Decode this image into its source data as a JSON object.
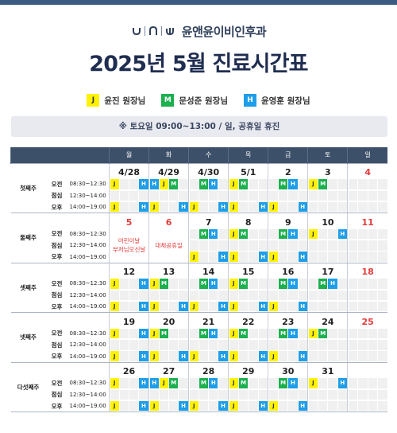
{
  "brand": {
    "name": "윤앤윤이비인후과",
    "logo_mark": "y-n-y-logo"
  },
  "title": "2025년 5월 진료시간표",
  "legend": [
    {
      "code": "J",
      "label": "윤진 원장님",
      "color": "#fff200"
    },
    {
      "code": "M",
      "label": "문성준 원장님",
      "color": "#1cb04f"
    },
    {
      "code": "H",
      "label": "윤영훈 원장님",
      "color": "#1e9ee8"
    }
  ],
  "notice": "※ 토요일 09:00~13:00 / 일, 공휴일 휴진",
  "days": [
    "월",
    "화",
    "수",
    "목",
    "금",
    "토",
    "일"
  ],
  "periods": [
    {
      "label": "오전",
      "time": "08:30~12:30"
    },
    {
      "label": "점심",
      "time": "12:30~14:00"
    },
    {
      "label": "오후",
      "time": "14:00~19:00"
    }
  ],
  "weeks": [
    {
      "label": "첫째주",
      "dates": [
        "4/28",
        "4/29",
        "4/30",
        "5/1",
        "2",
        "3",
        "4"
      ],
      "red": [
        6
      ],
      "am": [
        "J__H",
        "HJM_",
        "_MH_",
        "JM__",
        "_MH_",
        "JM__",
        "____"
      ],
      "pm": [
        "J__H",
        "J__H",
        "J__H",
        "J__H",
        "J__H",
        "____",
        "____"
      ],
      "holidays": {}
    },
    {
      "label": "둘째주",
      "dates": [
        "5",
        "6",
        "7",
        "8",
        "9",
        "10",
        "11"
      ],
      "red": [
        0,
        1,
        6
      ],
      "am": [
        "____",
        "____",
        "_MH_",
        "JM__",
        "_MH_",
        "J__H",
        "____"
      ],
      "pm": [
        "____",
        "____",
        "J__H",
        "J__H",
        "J__H",
        "____",
        "____"
      ],
      "holidays": {
        "0": "어린이날\n부처님오신날",
        "1": "대체공휴일"
      }
    },
    {
      "label": "셋째주",
      "dates": [
        "12",
        "13",
        "14",
        "15",
        "16",
        "17",
        "18"
      ],
      "red": [
        6
      ],
      "am": [
        "J__H",
        "JM__",
        "_MH_",
        "JM__",
        "_MH_",
        "_MH_",
        "____"
      ],
      "pm": [
        "J__H",
        "J__H",
        "J__H",
        "J__H",
        "J__H",
        "____",
        "____"
      ],
      "holidays": {}
    },
    {
      "label": "넷째주",
      "dates": [
        "19",
        "20",
        "21",
        "22",
        "23",
        "24",
        "25"
      ],
      "red": [
        6
      ],
      "am": [
        "J__H",
        "JM__",
        "_MH_",
        "JM__",
        "_MH_",
        "JM__",
        "____"
      ],
      "pm": [
        "J__H",
        "J__H",
        "J__H",
        "J__H",
        "J__H",
        "____",
        "____"
      ],
      "holidays": {}
    },
    {
      "label": "다섯째주",
      "dates": [
        "26",
        "27",
        "28",
        "29",
        "30",
        "31",
        ""
      ],
      "red": [],
      "am": [
        "J__H",
        "HJM_",
        "_MH_",
        "JM__",
        "_MH_",
        "J__H",
        "____"
      ],
      "pm": [
        "J__H",
        "J__H",
        "J__H",
        "J__H",
        "J__H",
        "____",
        "____"
      ],
      "holidays": {}
    }
  ]
}
